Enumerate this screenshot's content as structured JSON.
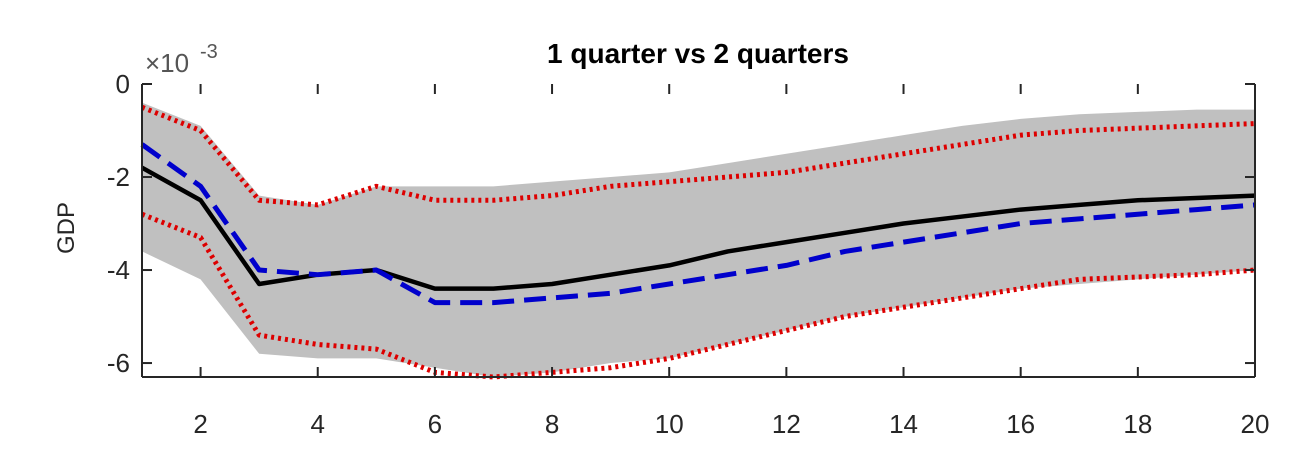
{
  "chart_data": {
    "type": "line",
    "title": "1 quarter vs 2 quarters",
    "ylabel": "GDP",
    "y_multiplier_label": "×10",
    "y_multiplier_exponent": "-3",
    "xlim": [
      1,
      20
    ],
    "ylim": [
      -6.3,
      0
    ],
    "xticks": [
      2,
      4,
      6,
      8,
      10,
      12,
      14,
      16,
      18,
      20
    ],
    "yticks": [
      0,
      -2,
      -4,
      -6
    ],
    "x": [
      1,
      2,
      3,
      4,
      5,
      6,
      7,
      8,
      9,
      10,
      11,
      12,
      13,
      14,
      15,
      16,
      17,
      18,
      19,
      20
    ],
    "band": {
      "upper": [
        -0.4,
        -0.9,
        -2.4,
        -2.6,
        -2.2,
        -2.2,
        -2.2,
        -2.1,
        -2.0,
        -1.9,
        -1.7,
        -1.5,
        -1.3,
        -1.1,
        -0.9,
        -0.75,
        -0.65,
        -0.6,
        -0.55,
        -0.55
      ],
      "lower": [
        -3.6,
        -4.2,
        -5.8,
        -5.9,
        -5.9,
        -6.1,
        -6.3,
        -6.2,
        -6.0,
        -5.9,
        -5.6,
        -5.3,
        -5.0,
        -4.8,
        -4.6,
        -4.4,
        -4.3,
        -4.2,
        -4.1,
        -4.0
      ],
      "color": "#c0c0c0"
    },
    "series": [
      {
        "style": "solid",
        "color": "#000000",
        "values": [
          -1.8,
          -2.5,
          -4.3,
          -4.1,
          -4.0,
          -4.4,
          -4.4,
          -4.3,
          -4.1,
          -3.9,
          -3.6,
          -3.4,
          -3.2,
          -3.0,
          -2.85,
          -2.7,
          -2.6,
          -2.5,
          -2.45,
          -2.4
        ]
      },
      {
        "style": "dashed",
        "color": "#0000cc",
        "values": [
          -1.3,
          -2.2,
          -4.0,
          -4.1,
          -4.0,
          -4.7,
          -4.7,
          -4.6,
          -4.5,
          -4.3,
          -4.1,
          -3.9,
          -3.6,
          -3.4,
          -3.2,
          -3.0,
          -2.9,
          -2.8,
          -2.7,
          -2.6
        ]
      },
      {
        "style": "dotted",
        "color": "#dd0000",
        "values": [
          -0.5,
          -1.0,
          -2.5,
          -2.6,
          -2.2,
          -2.5,
          -2.5,
          -2.4,
          -2.2,
          -2.1,
          -2.0,
          -1.9,
          -1.7,
          -1.5,
          -1.3,
          -1.1,
          -1.0,
          -0.95,
          -0.9,
          -0.85
        ]
      },
      {
        "style": "dotted",
        "color": "#dd0000",
        "values": [
          -2.8,
          -3.3,
          -5.4,
          -5.6,
          -5.7,
          -6.2,
          -6.3,
          -6.2,
          -6.1,
          -5.9,
          -5.6,
          -5.3,
          -5.0,
          -4.8,
          -4.6,
          -4.4,
          -4.2,
          -4.15,
          -4.1,
          -4.0
        ]
      }
    ],
    "grid": false
  }
}
